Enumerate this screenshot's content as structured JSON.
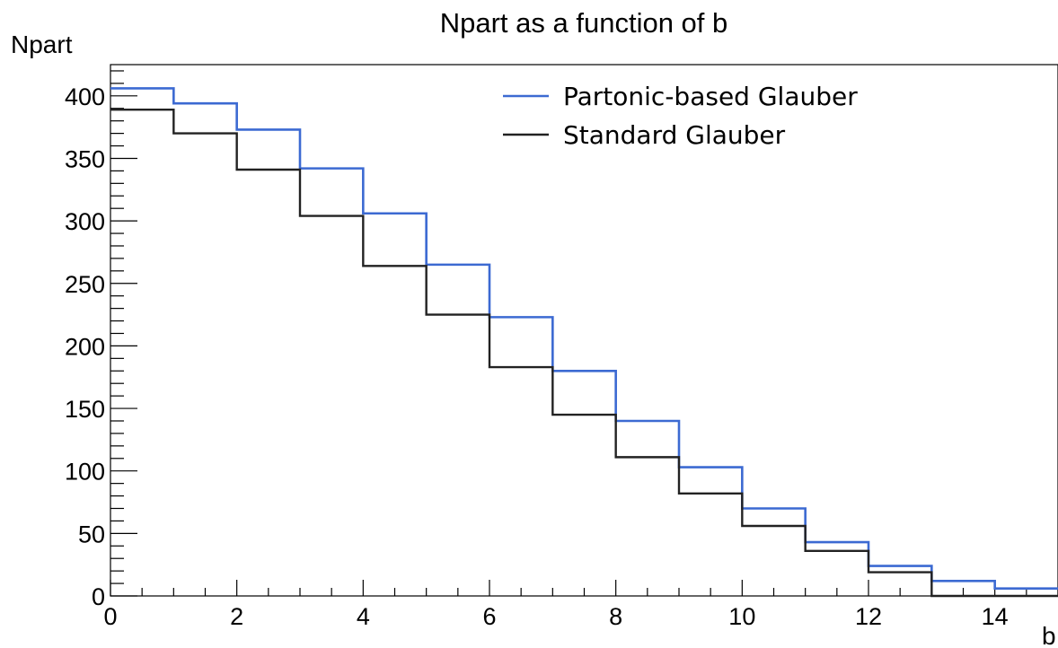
{
  "chart_data": {
    "type": "line",
    "step": true,
    "title": "Npart as a function of b",
    "xlabel": "b",
    "ylabel": "Npart",
    "xlim": [
      0,
      15
    ],
    "ylim": [
      0,
      425
    ],
    "xticks": [
      0,
      2,
      4,
      6,
      8,
      10,
      12,
      14
    ],
    "yticks": [
      0,
      50,
      100,
      150,
      200,
      250,
      300,
      350,
      400
    ],
    "bin_edges": [
      0,
      1,
      2,
      3,
      4,
      5,
      6,
      7,
      8,
      9,
      10,
      11,
      12,
      13,
      14,
      15
    ],
    "legend_position": "top-right",
    "series": [
      {
        "name": "Partonic-based Glauber",
        "color": "#3c6ad2",
        "values": [
          406,
          394,
          373,
          342,
          306,
          265,
          223,
          180,
          140,
          103,
          70,
          43,
          24,
          12,
          6
        ]
      },
      {
        "name": "Standard Glauber",
        "color": "#222222",
        "values": [
          389,
          370,
          341,
          304,
          264,
          225,
          183,
          145,
          111,
          82,
          56,
          36,
          19,
          0,
          0
        ]
      }
    ]
  }
}
